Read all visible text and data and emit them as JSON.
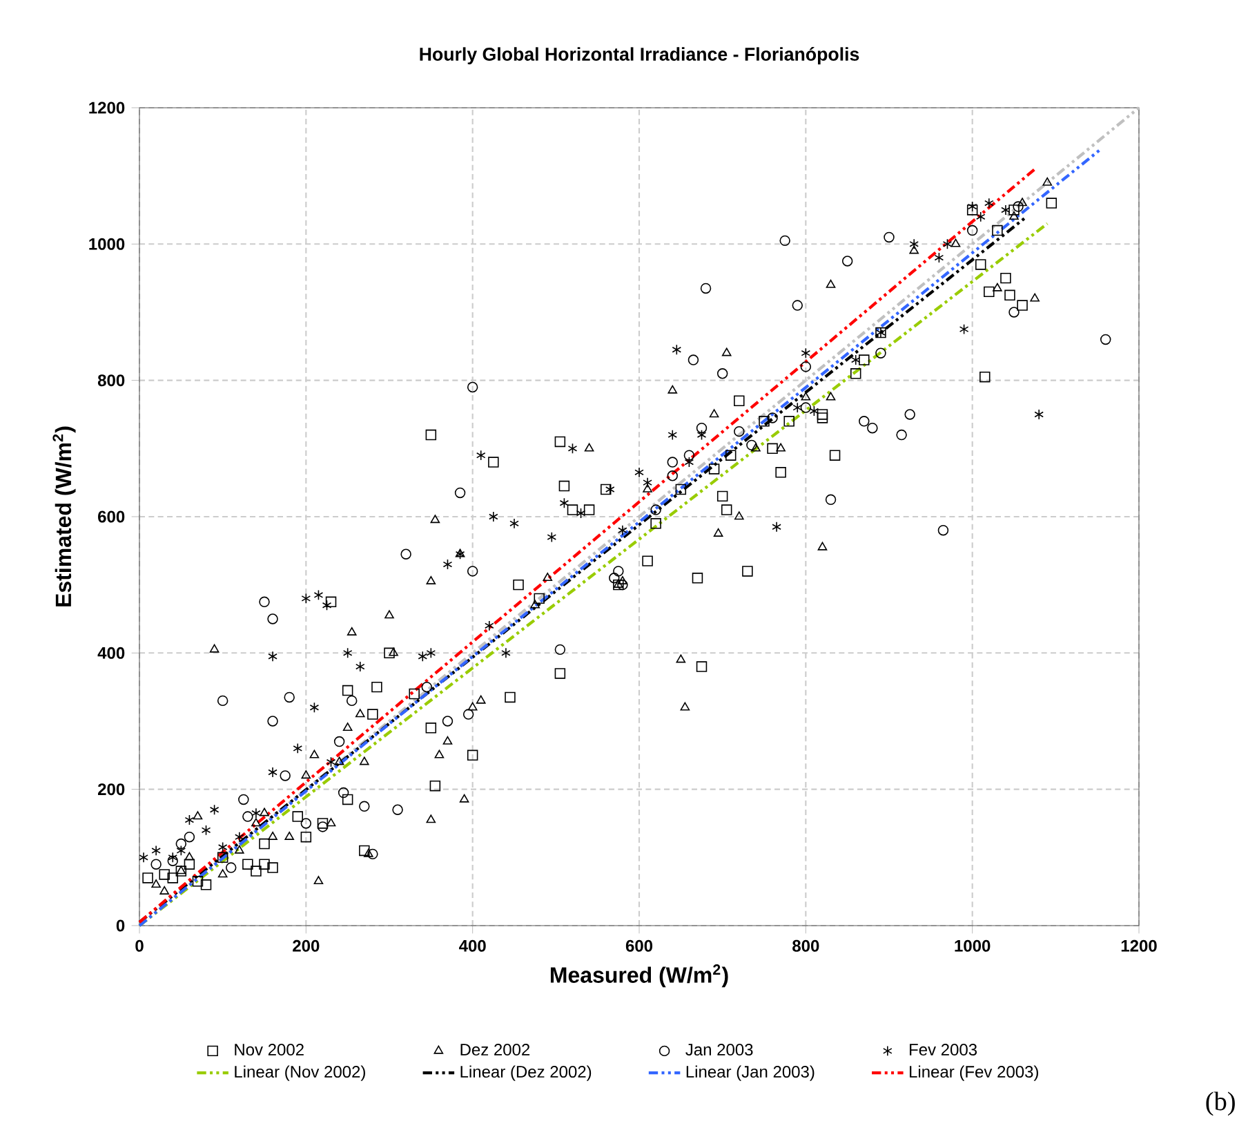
{
  "chart_data": {
    "type": "scatter",
    "title": "Hourly Global Horizontal Irradiance - Florianópolis",
    "xlabel": "Measured (W/m$^{2}$)",
    "ylabel": "Estimated (W/m$^{2}$)",
    "xlim": [
      0,
      1200
    ],
    "ylim": [
      0,
      1200
    ],
    "xticks": [
      0,
      200,
      400,
      600,
      800,
      1000,
      1200
    ],
    "yticks": [
      0,
      200,
      400,
      600,
      800,
      1000,
      1200
    ],
    "grid": true,
    "legend": "bottom",
    "annotations": [
      "(b)"
    ],
    "series": [
      {
        "name": "Nov 2002",
        "marker": "square",
        "color": "#000000",
        "x": [
          10,
          30,
          40,
          50,
          60,
          70,
          80,
          100,
          130,
          140,
          150,
          150,
          160,
          190,
          200,
          220,
          230,
          250,
          250,
          270,
          280,
          285,
          300,
          330,
          350,
          355,
          350,
          400,
          425,
          445,
          455,
          480,
          505,
          505,
          510,
          520,
          540,
          560,
          575,
          610,
          620,
          650,
          670,
          675,
          690,
          700,
          705,
          710,
          720,
          730,
          750,
          760,
          770,
          780,
          820,
          820,
          835,
          860,
          870,
          890,
          1000,
          1010,
          1015,
          1020,
          1030,
          1040,
          1045,
          1050,
          1060,
          1095
        ],
        "values": [
          70,
          75,
          70,
          80,
          90,
          65,
          60,
          100,
          90,
          80,
          90,
          120,
          85,
          160,
          130,
          150,
          475,
          185,
          345,
          110,
          310,
          350,
          400,
          340,
          290,
          205,
          720,
          250,
          680,
          335,
          500,
          480,
          370,
          710,
          645,
          610,
          610,
          640,
          500,
          535,
          590,
          640,
          510,
          380,
          670,
          630,
          610,
          690,
          770,
          520,
          740,
          700,
          665,
          740,
          745,
          750,
          690,
          810,
          830,
          870,
          1050,
          970,
          805,
          930,
          1020,
          950,
          925,
          1050,
          910,
          1060
        ]
      },
      {
        "name": "Dez 2002",
        "marker": "triangle",
        "color": "#000000",
        "x": [
          20,
          30,
          50,
          60,
          70,
          90,
          100,
          120,
          140,
          150,
          160,
          180,
          200,
          210,
          215,
          230,
          240,
          250,
          255,
          265,
          270,
          275,
          300,
          305,
          350,
          350,
          355,
          360,
          370,
          385,
          390,
          400,
          410,
          475,
          490,
          540,
          575,
          580,
          610,
          640,
          650,
          655,
          690,
          695,
          705,
          720,
          740,
          770,
          800,
          820,
          830,
          830,
          930,
          980,
          1030,
          1050,
          1060,
          1075,
          1090
        ],
        "values": [
          60,
          50,
          80,
          100,
          160,
          405,
          75,
          110,
          150,
          165,
          130,
          130,
          220,
          250,
          65,
          150,
          240,
          290,
          430,
          310,
          240,
          105,
          455,
          400,
          155,
          505,
          595,
          250,
          270,
          545,
          185,
          320,
          330,
          470,
          510,
          700,
          500,
          505,
          640,
          785,
          390,
          320,
          750,
          575,
          840,
          600,
          700,
          700,
          775,
          555,
          940,
          775,
          990,
          1000,
          935,
          1040,
          1060,
          920,
          1090
        ]
      },
      {
        "name": "Jan 2003",
        "marker": "circle",
        "color": "#000000",
        "x": [
          20,
          40,
          50,
          60,
          100,
          110,
          125,
          130,
          150,
          160,
          160,
          175,
          180,
          200,
          220,
          240,
          245,
          255,
          270,
          280,
          310,
          320,
          345,
          370,
          385,
          395,
          400,
          400,
          505,
          570,
          575,
          580,
          620,
          640,
          640,
          660,
          665,
          675,
          680,
          700,
          720,
          735,
          760,
          775,
          790,
          800,
          800,
          830,
          850,
          870,
          880,
          890,
          900,
          915,
          925,
          965,
          1000,
          1050,
          1055,
          1160
        ],
        "values": [
          90,
          95,
          120,
          130,
          330,
          85,
          185,
          160,
          475,
          450,
          300,
          220,
          335,
          150,
          145,
          270,
          195,
          330,
          175,
          105,
          170,
          545,
          350,
          300,
          635,
          310,
          520,
          790,
          405,
          510,
          520,
          500,
          610,
          680,
          660,
          690,
          830,
          730,
          935,
          810,
          725,
          705,
          745,
          1005,
          910,
          760,
          820,
          625,
          975,
          740,
          730,
          840,
          1010,
          720,
          750,
          580,
          1020,
          900,
          1055,
          860
        ]
      },
      {
        "name": "Fev 2003",
        "marker": "cross",
        "color": "#000000",
        "x": [
          5,
          20,
          40,
          50,
          60,
          80,
          90,
          100,
          120,
          140,
          160,
          160,
          190,
          200,
          210,
          215,
          225,
          230,
          250,
          265,
          340,
          350,
          370,
          385,
          410,
          420,
          425,
          440,
          450,
          495,
          510,
          520,
          530,
          565,
          580,
          600,
          610,
          640,
          645,
          660,
          675,
          765,
          790,
          800,
          810,
          860,
          890,
          930,
          960,
          970,
          990,
          1000,
          1010,
          1020,
          1040,
          1080
        ],
        "values": [
          100,
          110,
          100,
          110,
          155,
          140,
          170,
          115,
          130,
          165,
          225,
          395,
          260,
          480,
          320,
          485,
          470,
          240,
          400,
          380,
          395,
          400,
          530,
          545,
          690,
          440,
          600,
          400,
          590,
          570,
          620,
          700,
          605,
          640,
          580,
          665,
          650,
          720,
          845,
          680,
          720,
          585,
          760,
          840,
          755,
          830,
          870,
          1000,
          980,
          1000,
          875,
          1055,
          1040,
          1060,
          1050,
          750
        ]
      },
      {
        "type": "line",
        "color": "#c0c0c0",
        "line_style": "dashed",
        "x": [
          0,
          1200
        ],
        "values": [
          0,
          1200
        ]
      },
      {
        "name": "Linear (Nov 2002)",
        "type": "line",
        "color": "#99cc00",
        "line_style": "dashed",
        "x": [
          0,
          1090
        ],
        "values": [
          0,
          1030
        ]
      },
      {
        "name": "Linear (Dez 2002)",
        "type": "line",
        "color": "#000000",
        "line_style": "dashed",
        "x": [
          0,
          1065
        ],
        "values": [
          5,
          1040
        ]
      },
      {
        "name": "Linear (Jan 2003)",
        "type": "line",
        "color": "#3366ff",
        "line_style": "dashed",
        "x": [
          0,
          1155
        ],
        "values": [
          0,
          1140
        ]
      },
      {
        "name": "Linear (Fev 2003)",
        "type": "line",
        "color": "#ff0000",
        "line_style": "dashed",
        "x": [
          0,
          1075
        ],
        "values": [
          5,
          1110
        ]
      }
    ]
  }
}
